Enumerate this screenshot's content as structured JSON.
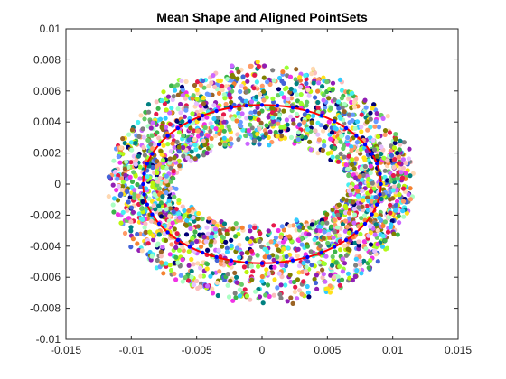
{
  "chart_data": {
    "type": "scatter",
    "title": "Mean Shape and Aligned PointSets",
    "xlabel": "",
    "ylabel": "",
    "xlim": [
      -0.015,
      0.015
    ],
    "ylim": [
      -0.01,
      0.01
    ],
    "x_ticks": [
      "-0.015",
      "-0.01",
      "-0.005",
      "0",
      "0.005",
      "0.01",
      "0.015"
    ],
    "x_tick_values": [
      -0.015,
      -0.01,
      -0.005,
      0,
      0.005,
      0.01,
      0.015
    ],
    "y_ticks": [
      "0.01",
      "0.008",
      "0.006",
      "0.004",
      "0.002",
      "0",
      "-0.002",
      "-0.004",
      "-0.006",
      "-0.008",
      "-0.01"
    ],
    "y_tick_values": [
      0.01,
      0.008,
      0.006,
      0.004,
      0.002,
      0,
      -0.002,
      -0.004,
      -0.006,
      -0.008,
      -0.01
    ],
    "grid": false,
    "legend": "none",
    "aligned_pointsets": {
      "description_of_distribution": "many multicolored point sets forming an elliptical annulus",
      "center": [
        0,
        0
      ],
      "inner_radius_x": 0.0068,
      "outer_radius_x": 0.0115,
      "inner_radius_y": 0.0028,
      "outer_radius_y": 0.0077,
      "palette": [
        "#e6194b",
        "#3cb44b",
        "#ffe119",
        "#4363d8",
        "#f58231",
        "#911eb4",
        "#46f0f0",
        "#f032e6",
        "#bcf60c",
        "#fabebe",
        "#008080",
        "#e6beff",
        "#9a6324",
        "#aaffc3",
        "#808000",
        "#ffd8b1",
        "#000075",
        "#808080",
        "#66cc66",
        "#cc66ff",
        "#33ccff",
        "#ff9966",
        "#99ff33",
        "#6699ff"
      ]
    },
    "mean_shape": {
      "type": "ellipse",
      "center": [
        0,
        0
      ],
      "radius_x": 0.0091,
      "radius_y": 0.0051,
      "line_color": "#ff0000",
      "marker_color": "#0000ff"
    }
  }
}
